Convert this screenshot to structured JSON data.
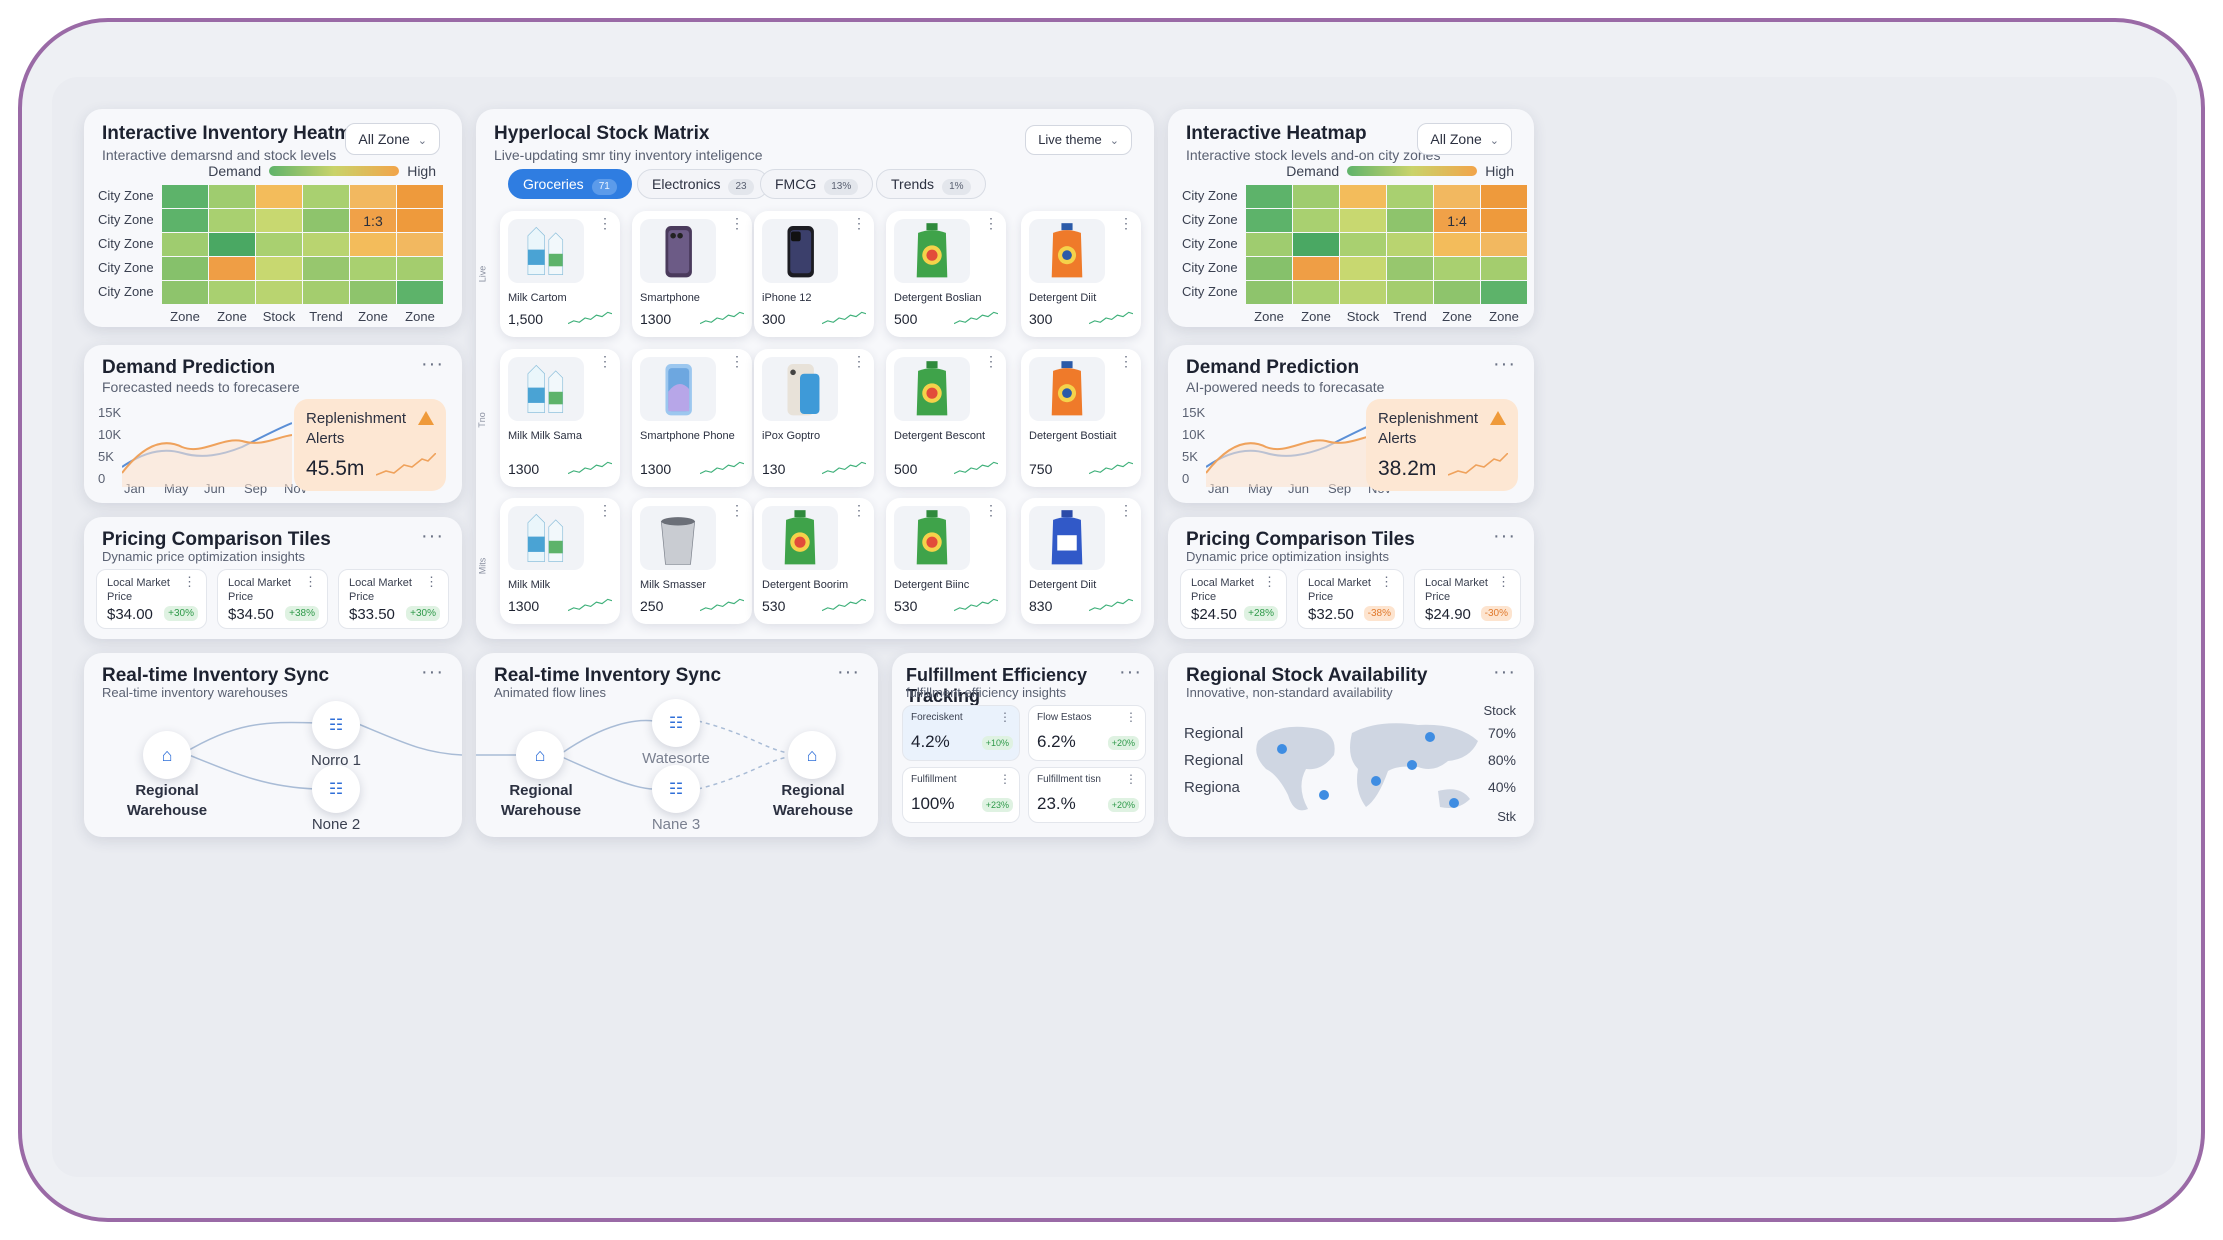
{
  "heatmap_left": {
    "title": "Interactive Inventory Heatmap",
    "subtitle": "Interactive demarsnd and stock levels",
    "dropdown": "All Zone",
    "legend_low": "Demand",
    "legend_high": "High",
    "rows": [
      "City Zone",
      "City Zone",
      "City Zone",
      "City Zone",
      "City Zone"
    ],
    "cols": [
      "Zone",
      "Zone",
      "Stock",
      "Trend",
      "Zone",
      "Zone"
    ],
    "cell_label": "1:3",
    "colors": [
      "#5db36a",
      "#9fcc6f",
      "#f3bc5b",
      "#a9d070",
      "#f2b860",
      "#ee9a3c",
      "#5db36a",
      "#a9d070",
      "#c8d870",
      "#8ec46c",
      "#f0a148",
      "#ee9a3c",
      "#9fcc6f",
      "#4aa863",
      "#a9d070",
      "#b9d470",
      "#f3bc5b",
      "#f2b860",
      "#86c16b",
      "#ef9e45",
      "#c8d870",
      "#97c76e",
      "#a9d070",
      "#a4cd6e",
      "#8ec46c",
      "#a9d070",
      "#b9d470",
      "#a4cd6e",
      "#8ec46c",
      "#5db36a"
    ]
  },
  "heatmap_right": {
    "title": "Interactive Heatmap",
    "subtitle": "Interactive stock levels and-on city zones",
    "dropdown": "All Zone",
    "legend_low": "Demand",
    "legend_high": "High",
    "rows": [
      "City Zone",
      "City Zone",
      "City Zone",
      "City Zone",
      "City Zone"
    ],
    "cols": [
      "Zone",
      "Zone",
      "Stock",
      "Trend",
      "Zone",
      "Zone"
    ],
    "cell_label": "1:4",
    "colors": [
      "#5db36a",
      "#9fcc6f",
      "#f3bc5b",
      "#a9d070",
      "#f2b860",
      "#ee9a3c",
      "#5db36a",
      "#a9d070",
      "#c8d870",
      "#8ec46c",
      "#f0a148",
      "#ee9a3c",
      "#9fcc6f",
      "#4aa863",
      "#a9d070",
      "#b9d470",
      "#f3bc5b",
      "#f2b860",
      "#86c16b",
      "#ef9e45",
      "#c8d870",
      "#97c76e",
      "#a9d070",
      "#a4cd6e",
      "#8ec46c",
      "#a9d070",
      "#b9d470",
      "#a4cd6e",
      "#8ec46c",
      "#5db36a"
    ]
  },
  "demand_left": {
    "title": "Demand Prediction",
    "subtitle": "Forecasted needs to forecasere",
    "yticks": [
      "15K",
      "10K",
      "5K",
      "0"
    ],
    "xticks": [
      "Jan",
      "May",
      "Jun",
      "Sep",
      "Nov"
    ],
    "alert_title": "Replenishment Alerts",
    "alert_value": "45.5m"
  },
  "demand_right": {
    "title": "Demand Prediction",
    "subtitle": "AI-powered needs to forecasate",
    "yticks": [
      "15K",
      "10K",
      "5K",
      "0"
    ],
    "xticks": [
      "Jan",
      "May",
      "Jun",
      "Sep",
      "Nov"
    ],
    "alert_title": "Replenishment Alerts",
    "alert_value": "38.2m"
  },
  "pricing_left": {
    "title": "Pricing Comparison Tiles",
    "subtitle": "Dynamic price optimization insights",
    "tiles": [
      {
        "label": "Local Market Price",
        "value": "$34.00",
        "badge": "+30%",
        "tone": "g"
      },
      {
        "label": "Local Market Price",
        "value": "$34.50",
        "badge": "+38%",
        "tone": "g"
      },
      {
        "label": "Local Market Price",
        "value": "$33.50",
        "badge": "+30%",
        "tone": "g"
      }
    ]
  },
  "pricing_right": {
    "title": "Pricing Comparison Tiles",
    "subtitle": "Dynamic price optimization insights",
    "tiles": [
      {
        "label": "Local Market Price",
        "value": "$24.50",
        "badge": "+28%",
        "tone": "g"
      },
      {
        "label": "Local Market Price",
        "value": "$32.50",
        "badge": "-38%",
        "tone": "o"
      },
      {
        "label": "Local Market Price",
        "value": "$24.90",
        "badge": "-30%",
        "tone": "o"
      }
    ]
  },
  "matrix": {
    "title": "Hyperlocal Stock Matrix",
    "subtitle": "Live-updating smr tiny inventory inteligence",
    "dropdown": "Live theme",
    "tabs": [
      {
        "label": "Groceries",
        "count": "71"
      },
      {
        "label": "Electronics",
        "count": "23"
      },
      {
        "label": "FMCG",
        "count": "13%"
      },
      {
        "label": "Trends",
        "count": "1%"
      }
    ],
    "row_labels": [
      "Live",
      "Tno",
      "Mits"
    ],
    "products": [
      {
        "name": "Milk Cartom",
        "qty": "1,500",
        "img": "milk"
      },
      {
        "name": "Smartphone",
        "qty": "1300",
        "img": "phone-purple"
      },
      {
        "name": "iPhone 12",
        "qty": "300",
        "img": "phone-black"
      },
      {
        "name": "Detergent Boslian",
        "qty": "500",
        "img": "detergent-green"
      },
      {
        "name": "Detergent Diit",
        "qty": "300",
        "img": "detergent-orange"
      },
      {
        "name": "Milk Milk Sama",
        "qty": "1300",
        "img": "milk"
      },
      {
        "name": "Smartphone Phone",
        "qty": "1300",
        "img": "phone-blue"
      },
      {
        "name": "iPox Goptro",
        "qty": "130",
        "img": "phone-light"
      },
      {
        "name": "Detergent Bescont",
        "qty": "500",
        "img": "detergent-green"
      },
      {
        "name": "Detergent Bostiait",
        "qty": "750",
        "img": "detergent-orange"
      },
      {
        "name": "Milk Milk",
        "qty": "1300",
        "img": "milk"
      },
      {
        "name": "Milk Smasser",
        "qty": "250",
        "img": "bucket"
      },
      {
        "name": "Detergent Boorim",
        "qty": "530",
        "img": "detergent-green"
      },
      {
        "name": "Detergent Biinc",
        "qty": "530",
        "img": "detergent-green"
      },
      {
        "name": "Detergent Diit",
        "qty": "830",
        "img": "detergent-blue"
      }
    ]
  },
  "sync_left": {
    "title": "Real-time Inventory Sync",
    "subtitle": "Real-time inventory warehouses",
    "warehouse": "Regional Warehouse",
    "node1": "Norro 1",
    "node2": "None 2"
  },
  "sync_mid": {
    "title": "Real-time Inventory Sync",
    "subtitle": "Animated flow lines",
    "warehouse_a": "Regional Warehouse",
    "warehouse_b": "Regional Warehouse",
    "node1": "Watesorte",
    "node2": "Nane 3"
  },
  "fulfillment": {
    "title": "Fulfillment Efficiency Tracking",
    "subtitle": "fulfillment efficiency insights",
    "tiles": [
      {
        "label": "Foreciskent",
        "value": "4.2%",
        "badge": "+10%"
      },
      {
        "label": "Flow Estaos",
        "value": "6.2%",
        "badge": "+20%"
      },
      {
        "label": "Fulfillment",
        "value": "100%",
        "badge": "+23%"
      },
      {
        "label": "Fulfillment tisn",
        "value": "23.%",
        "badge": "+20%"
      }
    ]
  },
  "regional": {
    "title": "Regional Stock Availability",
    "subtitle": "Innovative, non-standard availability",
    "left_labels": [
      "Regional",
      "Regional",
      "Regiona"
    ],
    "right_header": "Stock",
    "right_labels": [
      "70%",
      "80%",
      "40%"
    ],
    "right_footer": "Stk"
  }
}
